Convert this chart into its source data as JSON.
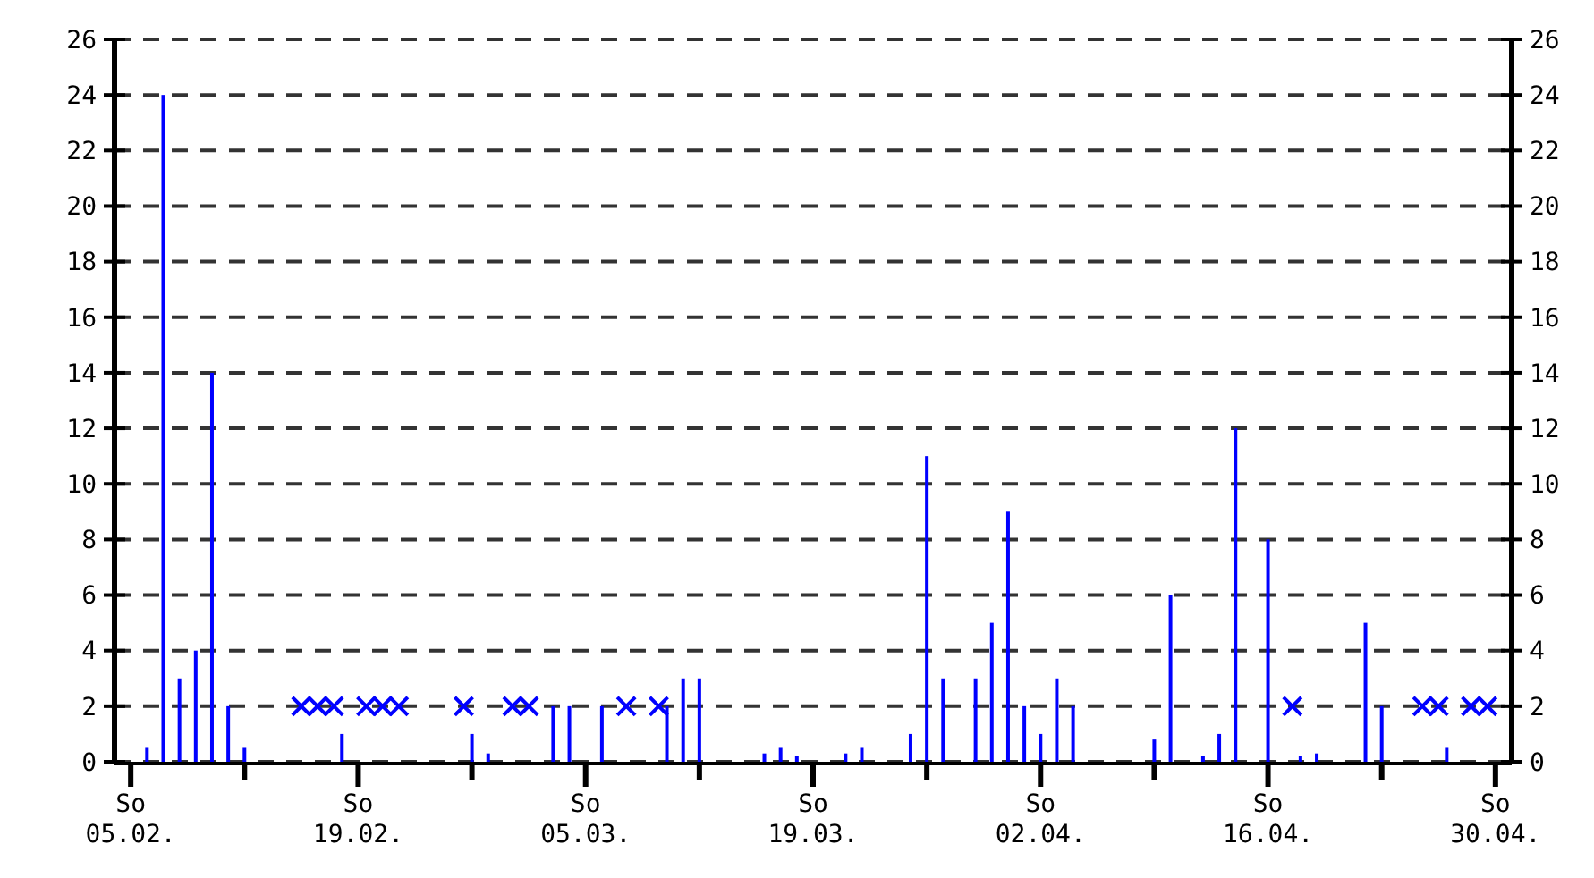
{
  "chart_data": {
    "type": "bar",
    "x": [
      "--02-06",
      "--02-07",
      "--02-08",
      "--02-09",
      "--02-10",
      "--02-11",
      "--02-12",
      "--02-18",
      "--02-26",
      "--02-27",
      "--03-03",
      "--03-04",
      "--03-06",
      "--03-10",
      "--03-11",
      "--03-12",
      "--03-16",
      "--03-17",
      "--03-18",
      "--03-21",
      "--03-22",
      "--03-25",
      "--03-26",
      "--03-27",
      "--03-29",
      "--03-30",
      "--03-31",
      "--04-01",
      "--04-02",
      "--04-03",
      "--04-04",
      "--04-09",
      "--04-10",
      "--04-12",
      "--04-13",
      "--04-14",
      "--04-16",
      "--04-18",
      "--04-19",
      "--04-22",
      "--04-23",
      "--04-27"
    ],
    "series": [
      {
        "color": "#0000ff",
        "values": [
          0.5,
          24,
          3,
          4,
          14,
          2,
          0.5,
          1,
          1,
          0.3,
          2,
          2,
          2,
          2,
          3,
          3,
          0.3,
          0.5,
          0.2,
          0.3,
          0.5,
          1,
          11,
          3,
          3,
          5,
          9,
          2,
          1,
          3,
          2,
          0.8,
          6,
          0.2,
          1,
          12,
          8,
          0.2,
          0.3,
          5,
          2,
          0.5
        ]
      },
      {
        "type": "scatter",
        "color": "#0000ff",
        "marker": "cross",
        "x": [
          "--02-15T12:00",
          "--02-16T12:00",
          "--02-17T12:00",
          "--02-19T12:00",
          "--02-20T12:00",
          "--02-21T12:00",
          "--02-25T12:00",
          "--02-28T12:00",
          "--03-01T12:00",
          "--03-07T12:00",
          "--03-09T12:00",
          "--04-17T12:00",
          "--04-25T12:00",
          "--04-26T12:00",
          "--04-28T12:00",
          "--04-29T12:00"
        ],
        "values": [
          2,
          2,
          2,
          2,
          2,
          2,
          2,
          2,
          2,
          2,
          2,
          2,
          2,
          2,
          2,
          2
        ]
      }
    ],
    "xlim": [
      "--02-04",
      "--05-01"
    ],
    "xticks": [
      {
        "value": "--02-05",
        "label": "So 05.02."
      },
      {
        "value": "--02-12",
        "label": null
      },
      {
        "value": "--02-19",
        "label": "So 19.02."
      },
      {
        "value": "--02-26",
        "label": null
      },
      {
        "value": "--03-05",
        "label": "So 05.03."
      },
      {
        "value": "--03-12",
        "label": null
      },
      {
        "value": "--03-19",
        "label": "So 19.03."
      },
      {
        "value": "--03-26",
        "label": null
      },
      {
        "value": "--04-02",
        "label": "So 02.04."
      },
      {
        "value": "--04-09",
        "label": null
      },
      {
        "value": "--04-16",
        "label": "So 16.04."
      },
      {
        "value": "--04-23",
        "label": null
      },
      {
        "value": "--04-30",
        "label": "So 30.04."
      }
    ],
    "ylim": [
      0,
      26
    ],
    "yticks": [
      0,
      2,
      4,
      6,
      8,
      10,
      12,
      14,
      16,
      18,
      20,
      22,
      24,
      26
    ],
    "y2lim": [
      0,
      26
    ],
    "y2ticks": [
      0,
      2,
      4,
      6,
      8,
      10,
      12,
      14,
      16,
      18,
      20,
      22,
      24,
      26
    ],
    "grid": "y"
  }
}
